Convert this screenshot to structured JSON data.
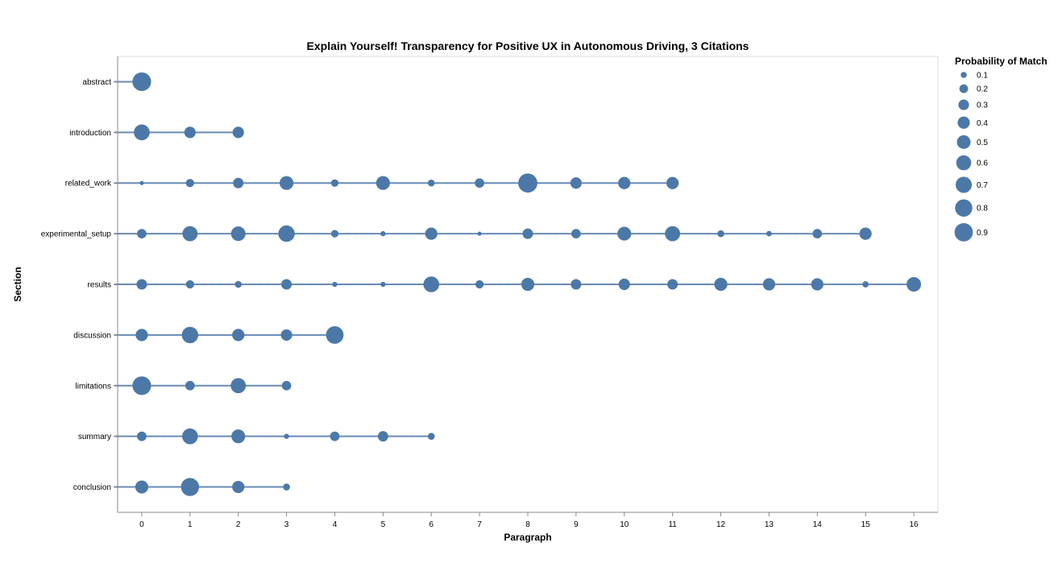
{
  "chart_data": {
    "type": "scatter",
    "title": "Explain Yourself! Transparency for Positive UX in Autonomous Driving, 3 Citations",
    "xlabel": "Paragraph",
    "ylabel": "Section",
    "xlim": [
      -0.5,
      16.5
    ],
    "x_ticks": [
      0,
      1,
      2,
      3,
      4,
      5,
      6,
      7,
      8,
      9,
      10,
      11,
      12,
      13,
      14,
      15,
      16
    ],
    "categories": [
      "abstract",
      "introduction",
      "related_work",
      "experimental_setup",
      "results",
      "discussion",
      "limitations",
      "summary",
      "conclusion"
    ],
    "size_legend": {
      "title": "Probability of Match",
      "values": [
        0.1,
        0.2,
        0.3,
        0.4,
        0.5,
        0.6,
        0.7,
        0.8,
        0.9
      ],
      "labels": [
        "0.1",
        "0.2",
        "0.3",
        "0.4",
        "0.5",
        "0.6",
        "0.7",
        "0.8",
        "0.9"
      ]
    },
    "color": "#4c78a8",
    "series": [
      {
        "section": "abstract",
        "x": [
          0
        ],
        "p": [
          0.85
        ]
      },
      {
        "section": "introduction",
        "x": [
          0,
          1,
          2
        ],
        "p": [
          0.6,
          0.3,
          0.3
        ]
      },
      {
        "section": "related_work",
        "x": [
          0,
          1,
          2,
          3,
          4,
          5,
          6,
          7,
          8,
          9,
          10,
          11
        ],
        "p": [
          0.03,
          0.15,
          0.25,
          0.45,
          0.12,
          0.45,
          0.1,
          0.2,
          0.9,
          0.3,
          0.35,
          0.35
        ]
      },
      {
        "section": "experimental_setup",
        "x": [
          0,
          1,
          2,
          3,
          4,
          5,
          6,
          7,
          8,
          9,
          10,
          11,
          12,
          13,
          14,
          15
        ],
        "p": [
          0.2,
          0.55,
          0.5,
          0.65,
          0.12,
          0.05,
          0.35,
          0.03,
          0.25,
          0.2,
          0.45,
          0.55,
          0.1,
          0.06,
          0.2,
          0.35
        ]
      },
      {
        "section": "results",
        "x": [
          0,
          1,
          2,
          3,
          4,
          5,
          6,
          7,
          8,
          9,
          10,
          11,
          12,
          13,
          14,
          15,
          16
        ],
        "p": [
          0.25,
          0.15,
          0.1,
          0.25,
          0.05,
          0.05,
          0.6,
          0.15,
          0.4,
          0.25,
          0.3,
          0.25,
          0.4,
          0.35,
          0.35,
          0.08,
          0.5
        ]
      },
      {
        "section": "discussion",
        "x": [
          0,
          1,
          2,
          3,
          4
        ],
        "p": [
          0.35,
          0.65,
          0.35,
          0.3,
          0.75
        ]
      },
      {
        "section": "limitations",
        "x": [
          0,
          1,
          2,
          3
        ],
        "p": [
          0.85,
          0.2,
          0.55,
          0.2
        ]
      },
      {
        "section": "summary",
        "x": [
          0,
          1,
          2,
          3,
          4,
          5,
          6
        ],
        "p": [
          0.2,
          0.6,
          0.45,
          0.05,
          0.2,
          0.25,
          0.1
        ]
      },
      {
        "section": "conclusion",
        "x": [
          0,
          1,
          2,
          3
        ],
        "p": [
          0.4,
          0.8,
          0.35,
          0.1
        ]
      }
    ]
  }
}
